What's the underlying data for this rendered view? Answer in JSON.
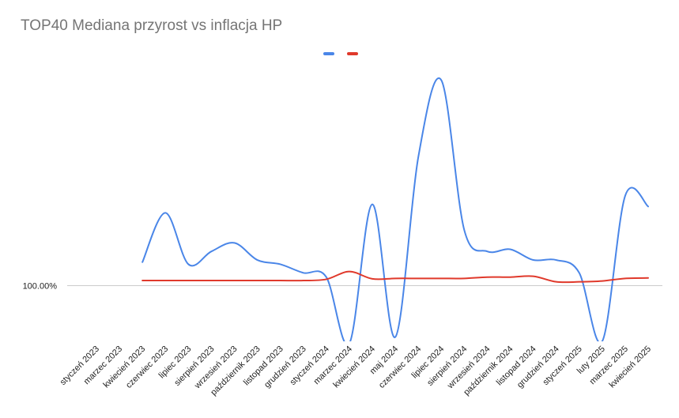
{
  "chart_data": {
    "type": "line",
    "title": "TOP40 Mediana przyrost vs inflacja HP",
    "xlabel": "",
    "ylabel": "",
    "legend_position": "top",
    "grid": false,
    "categories": [
      "styczeń 2023",
      "marzec 2023",
      "kwiecień 2023",
      "czerwiec 2023",
      "lipiec 2023",
      "sierpień 2023",
      "wrzesień 2023",
      "październik 2023",
      "listopad 2023",
      "grudzień 2023",
      "styczeń 2024",
      "marzec 2024",
      "kwiecień 2024",
      "maj 2024",
      "czerwiec 2024",
      "lipiec 2024",
      "sierpień 2024",
      "wrzesień 2024",
      "październik 2024",
      "listopad 2024",
      "grudzień 2024",
      "styczeń 2025",
      "luty 2025",
      "marzec 2025",
      "kwiecień 2025"
    ],
    "y_tick_labels": [
      "100.00%"
    ],
    "y_tick_values": [
      100.0
    ],
    "ylim": [
      98.7,
      104.9
    ],
    "series": [
      {
        "name": "",
        "color": "#4a86e8",
        "values": [
          null,
          null,
          100.55,
          101.7,
          100.5,
          100.8,
          101.0,
          100.6,
          100.5,
          100.3,
          100.2,
          98.65,
          101.9,
          98.8,
          103.0,
          104.8,
          101.3,
          100.8,
          100.85,
          100.6,
          100.6,
          100.3,
          98.7,
          102.1,
          101.85
        ]
      },
      {
        "name": "",
        "color": "#e0392b",
        "values": [
          null,
          null,
          100.12,
          100.12,
          100.12,
          100.12,
          100.12,
          100.12,
          100.12,
          100.12,
          100.15,
          100.33,
          100.16,
          100.17,
          100.17,
          100.17,
          100.17,
          100.2,
          100.2,
          100.22,
          100.09,
          100.09,
          100.11,
          100.17,
          100.18
        ]
      }
    ]
  }
}
